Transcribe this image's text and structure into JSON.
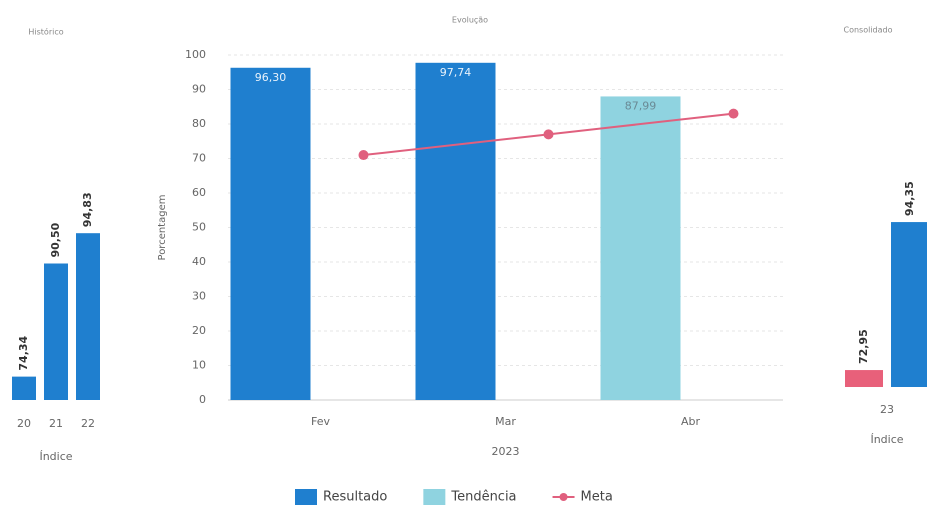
{
  "chart_data": [
    {
      "type": "bar",
      "title": "Histórico",
      "categories": [
        "20",
        "21",
        "22"
      ],
      "values": [
        74.34,
        90.5,
        94.83
      ],
      "value_labels": [
        "74,34",
        "90,50",
        "94,83"
      ],
      "color": "#1f7fcf",
      "xlabel": "Índice",
      "ylim": [
        71,
        100
      ]
    },
    {
      "type": "combo",
      "title": "Evolução",
      "categories": [
        "Fev",
        "Mar",
        "Abr"
      ],
      "xlabel": "2023",
      "ylabel": "Porcentagem",
      "ylim": [
        0,
        100
      ],
      "yticks": [
        0,
        10,
        20,
        30,
        40,
        50,
        60,
        70,
        80,
        90,
        100
      ],
      "grid": true,
      "legend": "bottom",
      "series": [
        {
          "name": "Resultado",
          "color": "#1f7fcf",
          "values": [
            96.3,
            97.74,
            null
          ],
          "value_labels": [
            "96,30",
            "97,74",
            null
          ]
        },
        {
          "name": "Tendência",
          "color": "#8fd3e0",
          "values": [
            null,
            null,
            87.99
          ],
          "value_labels": [
            null,
            null,
            "87,99"
          ]
        },
        {
          "name": "Meta",
          "type": "line",
          "color": "#e0607e",
          "values": [
            71,
            77,
            83
          ]
        }
      ]
    },
    {
      "type": "bar",
      "title": "Consolidado",
      "categories": [
        "23"
      ],
      "xlabel": "Índice",
      "ylim": [
        70.5,
        100
      ],
      "series": [
        {
          "color": "#e8607a",
          "values": [
            72.95
          ],
          "value_labels": [
            "72,95"
          ]
        },
        {
          "color": "#1f7fcf",
          "values": [
            94.35
          ],
          "value_labels": [
            "94,35"
          ]
        }
      ]
    }
  ]
}
